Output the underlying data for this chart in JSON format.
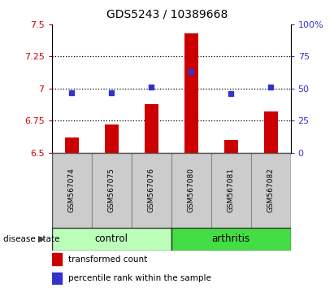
{
  "title": "GDS5243 / 10389668",
  "samples": [
    "GSM567074",
    "GSM567075",
    "GSM567076",
    "GSM567080",
    "GSM567081",
    "GSM567082"
  ],
  "bar_values": [
    6.62,
    6.72,
    6.88,
    7.43,
    6.6,
    6.82
  ],
  "dot_percentiles": [
    47,
    47,
    51,
    63,
    46,
    51
  ],
  "bar_base": 6.5,
  "ylim_left": [
    6.5,
    7.5
  ],
  "ylim_right": [
    0,
    100
  ],
  "yticks_left": [
    6.5,
    6.75,
    7.0,
    7.25,
    7.5
  ],
  "yticks_right": [
    0,
    25,
    50,
    75,
    100
  ],
  "ytick_labels_left": [
    "6.5",
    "6.75",
    "7",
    "7.25",
    "7.5"
  ],
  "ytick_labels_right": [
    "0",
    "25",
    "50",
    "75",
    "100%"
  ],
  "hlines": [
    6.75,
    7.0,
    7.25
  ],
  "bar_color": "#cc0000",
  "dot_color": "#3333cc",
  "groups": [
    {
      "label": "control",
      "indices": [
        0,
        1,
        2
      ],
      "color": "#bbffbb"
    },
    {
      "label": "arthritis",
      "indices": [
        3,
        4,
        5
      ],
      "color": "#44dd44"
    }
  ],
  "group_label": "disease state",
  "legend_items": [
    {
      "color": "#cc0000",
      "label": "transformed count"
    },
    {
      "color": "#3333cc",
      "label": "percentile rank within the sample"
    }
  ],
  "sample_box_color": "#cccccc",
  "grid_color": "black",
  "left_tick_color": "#cc0000",
  "right_tick_color": "#3333cc",
  "bar_width": 0.35
}
